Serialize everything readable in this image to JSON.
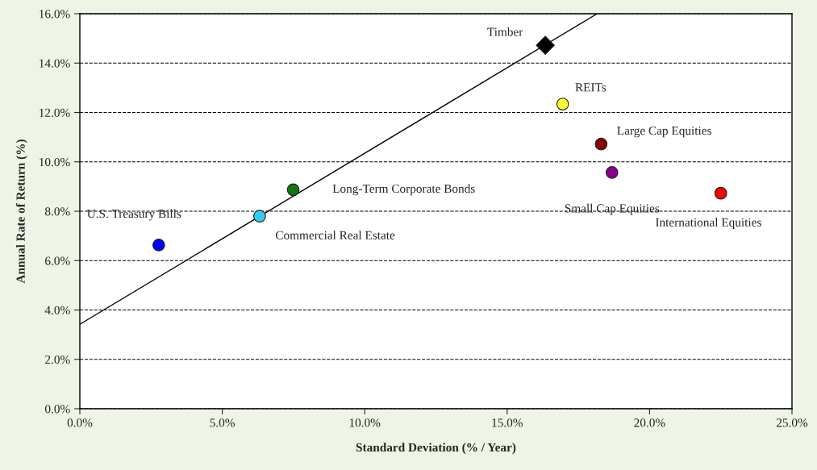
{
  "chart_data": {
    "type": "scatter",
    "xlabel": "Standard Deviation (% / Year)",
    "ylabel": "Annual Rate of Return (%)",
    "xlim": [
      0,
      25
    ],
    "ylim": [
      0,
      16
    ],
    "xticks": [
      {
        "value": 0,
        "label": "0.0%"
      },
      {
        "value": 5,
        "label": "5.0%"
      },
      {
        "value": 10,
        "label": "10.0%"
      },
      {
        "value": 15,
        "label": "15.0%"
      },
      {
        "value": 20,
        "label": "20.0%"
      },
      {
        "value": 25,
        "label": "25.0%"
      }
    ],
    "yticks": [
      {
        "value": 0,
        "label": "0.0%"
      },
      {
        "value": 2,
        "label": "2.0%"
      },
      {
        "value": 4,
        "label": "4.0%"
      },
      {
        "value": 6,
        "label": "6.0%"
      },
      {
        "value": 8,
        "label": "8.0%"
      },
      {
        "value": 10,
        "label": "10.0%"
      },
      {
        "value": 12,
        "label": "12.0%"
      },
      {
        "value": 14,
        "label": "14.0%"
      },
      {
        "value": 16,
        "label": "16.0%"
      }
    ],
    "grid": "y",
    "legend": false,
    "marker": "circle",
    "series": [
      {
        "type": "line",
        "color": "#000000",
        "x": [
          0,
          18.16
        ],
        "values": [
          3.42,
          16
        ],
        "marker": "none",
        "line_style": "solid"
      },
      {
        "name": "U.S. Treasury Bills",
        "color": "#0000ff",
        "x": [
          2.77
        ],
        "values": [
          6.63
        ]
      },
      {
        "name": "Commercial Real Estate",
        "color": "#33ccee",
        "x": [
          6.31
        ],
        "values": [
          7.8
        ]
      },
      {
        "name": "Long-Term Corporate Bonds",
        "color": "#117711",
        "x": [
          7.49
        ],
        "values": [
          8.87
        ]
      },
      {
        "name": "Timber",
        "color": "#000000",
        "x": [
          16.34
        ],
        "values": [
          14.72
        ],
        "marker": "diamond"
      },
      {
        "name": "REITs",
        "color": "#ffff33",
        "x": [
          16.95
        ],
        "values": [
          12.34
        ]
      },
      {
        "name": "Large Cap Equities",
        "color": "#880000",
        "x": [
          18.3
        ],
        "values": [
          10.72
        ]
      },
      {
        "name": "Small Cap Equities",
        "color": "#880088",
        "x": [
          18.68
        ],
        "values": [
          9.57
        ]
      },
      {
        "name": "International Equities",
        "color": "#ff0000",
        "x": [
          22.5
        ],
        "values": [
          8.73
        ]
      }
    ]
  }
}
